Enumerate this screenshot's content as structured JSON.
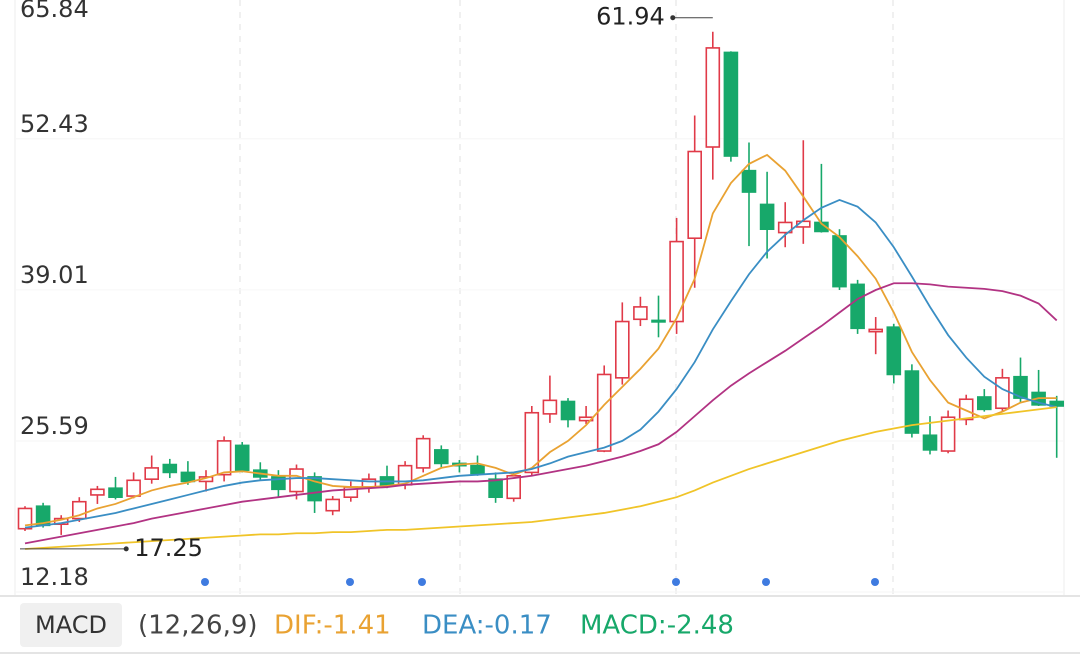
{
  "chart_data": {
    "type": "candlestick",
    "up_color": "#e03a48",
    "down_color": "#17a86a",
    "open": [
      17.8,
      19.8,
      18.2,
      18.7,
      20.8,
      21.4,
      20.7,
      22.2,
      23.5,
      22.8,
      22.0,
      22.6,
      25.2,
      23.0,
      22.4,
      21.1,
      22.4,
      19.4,
      20.6,
      21.5,
      22.4,
      21.7,
      23.2,
      24.8,
      23.6,
      23.4,
      22.2,
      20.5,
      22.8,
      28.0,
      29.1,
      27.4,
      24.7,
      31.2,
      36.4,
      36.3,
      36.2,
      43.6,
      51.7,
      60.1,
      49.6,
      46.6,
      44.1,
      44.6,
      45.0,
      43.8,
      39.5,
      35.3,
      35.7,
      31.8,
      26.1,
      24.7,
      27.5,
      29.5,
      28.5,
      31.3,
      29.9,
      29.1
    ],
    "high": [
      19.8,
      20.1,
      19.0,
      20.6,
      21.6,
      22.4,
      22.8,
      24.3,
      24.0,
      23.8,
      23.0,
      26.0,
      25.5,
      23.7,
      23.0,
      23.5,
      22.8,
      20.7,
      22.0,
      22.7,
      23.4,
      23.8,
      26.1,
      25.2,
      23.9,
      24.3,
      22.8,
      22.8,
      28.7,
      31.4,
      29.4,
      28.7,
      32.3,
      37.9,
      38.4,
      38.5,
      45.4,
      54.5,
      61.94,
      60.2,
      52.1,
      49.5,
      46.8,
      52.3,
      50.2,
      44.4,
      39.9,
      36.6,
      36.0,
      32.4,
      27.8,
      28.3,
      29.7,
      30.2,
      32.0,
      33.0,
      31.9,
      29.6
    ],
    "low": [
      17.6,
      17.9,
      17.25,
      18.4,
      20.0,
      20.4,
      20.5,
      21.8,
      22.3,
      21.7,
      21.1,
      22.0,
      22.8,
      22.1,
      20.6,
      20.4,
      19.2,
      19.0,
      20.2,
      21.0,
      21.4,
      21.3,
      22.8,
      23.2,
      22.8,
      22.5,
      20.1,
      20.2,
      22.5,
      27.2,
      26.8,
      27.1,
      24.6,
      30.6,
      35.8,
      34.8,
      35.1,
      39.2,
      48.8,
      50.4,
      42.9,
      41.8,
      42.8,
      43.1,
      44.1,
      39.0,
      35.1,
      33.3,
      30.7,
      25.9,
      24.4,
      24.5,
      27.0,
      28.2,
      28.2,
      29.0,
      28.7,
      24.1
    ],
    "close": [
      19.6,
      18.1,
      18.7,
      20.2,
      21.3,
      20.6,
      22.1,
      23.2,
      22.8,
      22.0,
      22.4,
      25.6,
      23.0,
      22.4,
      21.3,
      23.1,
      20.3,
      20.4,
      21.5,
      22.2,
      21.7,
      23.4,
      25.8,
      23.6,
      23.4,
      22.7,
      20.6,
      22.5,
      28.1,
      29.2,
      27.5,
      27.7,
      31.5,
      36.2,
      37.5,
      36.2,
      43.3,
      51.3,
      60.5,
      50.9,
      47.7,
      44.4,
      45.0,
      45.1,
      44.2,
      39.3,
      35.6,
      35.5,
      31.5,
      26.3,
      24.8,
      27.7,
      29.3,
      28.4,
      31.2,
      29.4,
      28.8,
      28.7
    ],
    "series": [
      {
        "color": "#e9a232",
        "values": [
          18.1,
          18.3,
          18.6,
          19.0,
          19.6,
          20.0,
          20.6,
          21.2,
          21.6,
          21.9,
          22.3,
          22.8,
          22.9,
          22.7,
          22.5,
          22.5,
          22.0,
          21.6,
          21.5,
          21.5,
          21.6,
          21.8,
          22.5,
          23.2,
          23.5,
          23.6,
          23.2,
          22.6,
          23.2,
          24.6,
          25.6,
          27.0,
          28.8,
          30.4,
          32.0,
          33.8,
          36.5,
          40.0,
          45.8,
          48.5,
          50.2,
          51.0,
          49.6,
          47.3,
          44.9,
          43.7,
          42.0,
          40.0,
          37.0,
          33.5,
          31.0,
          29.0,
          28.3,
          27.6,
          28.2,
          29.0,
          29.4,
          29.4
        ]
      },
      {
        "color": "#3a8ec4",
        "values": [
          17.9,
          18.1,
          18.3,
          18.6,
          18.9,
          19.2,
          19.6,
          20.0,
          20.4,
          20.8,
          21.2,
          21.6,
          21.9,
          22.1,
          22.2,
          22.3,
          22.3,
          22.2,
          22.1,
          22.0,
          22.0,
          22.0,
          22.1,
          22.3,
          22.5,
          22.6,
          22.7,
          22.8,
          23.1,
          23.6,
          24.2,
          24.6,
          25.0,
          25.6,
          26.6,
          28.2,
          30.2,
          32.6,
          35.5,
          38.0,
          40.4,
          42.4,
          43.9,
          45.2,
          46.3,
          47.0,
          46.4,
          45.0,
          42.8,
          40.2,
          37.5,
          35.0,
          33.0,
          31.3,
          30.2,
          29.5,
          29.0,
          28.6
        ]
      },
      {
        "color": "#b23383",
        "values": [
          16.5,
          16.8,
          17.1,
          17.4,
          17.7,
          18.0,
          18.3,
          18.7,
          19.0,
          19.3,
          19.6,
          19.9,
          20.2,
          20.4,
          20.6,
          20.8,
          21.0,
          21.2,
          21.3,
          21.4,
          21.5,
          21.7,
          21.8,
          21.9,
          22.0,
          22.0,
          22.1,
          22.3,
          22.5,
          22.8,
          23.1,
          23.4,
          23.8,
          24.2,
          24.7,
          25.3,
          26.4,
          27.8,
          29.2,
          30.5,
          31.6,
          32.6,
          33.6,
          34.7,
          35.8,
          37.0,
          38.2,
          39.0,
          39.6,
          39.6,
          39.5,
          39.3,
          39.2,
          39.1,
          38.9,
          38.5,
          37.8,
          36.3
        ]
      },
      {
        "color": "#f0c428",
        "values": [
          16.0,
          16.1,
          16.2,
          16.3,
          16.4,
          16.5,
          16.6,
          16.7,
          16.8,
          16.9,
          17.0,
          17.1,
          17.2,
          17.3,
          17.3,
          17.4,
          17.4,
          17.5,
          17.5,
          17.6,
          17.7,
          17.7,
          17.8,
          17.9,
          18.0,
          18.1,
          18.2,
          18.3,
          18.4,
          18.6,
          18.8,
          19.0,
          19.2,
          19.5,
          19.8,
          20.2,
          20.6,
          21.2,
          21.9,
          22.5,
          23.1,
          23.6,
          24.1,
          24.6,
          25.1,
          25.6,
          26.0,
          26.4,
          26.7,
          27.0,
          27.2,
          27.4,
          27.6,
          27.8,
          28.0,
          28.2,
          28.4,
          28.6
        ]
      }
    ],
    "ylim": [
      12.18,
      65.84
    ],
    "yticks": [
      12.18,
      25.59,
      39.01,
      52.43,
      65.84
    ],
    "indicator": {
      "name": "MACD",
      "params": "(12,26,9)",
      "dif": "DIF:-1.41",
      "dea": "DEA:-0.17",
      "macd": "MACD:-2.48"
    }
  }
}
